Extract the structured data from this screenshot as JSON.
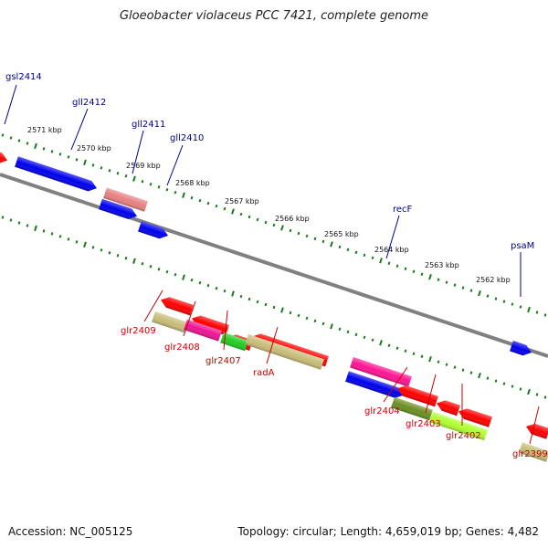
{
  "title": "Gloeobacter violaceus PCC 7421, complete genome",
  "footer": {
    "accession": "Accession: NC_005125",
    "topology": "Topology: circular; Length: 4,659,019 bp; Genes: 4,482"
  },
  "colors": {
    "forward_label": "#00008b",
    "reverse_label": "#cc0000",
    "tick": "#1a7a1a",
    "axis": "#808080"
  },
  "scale_labels": [
    "2571 kbp",
    "2570 kbp",
    "2569 kbp",
    "2568 kbp",
    "2567 kbp",
    "2566 kbp",
    "2565 kbp",
    "2564 kbp",
    "2563 kbp",
    "2562 kbp"
  ],
  "forward_labels": [
    "gsl2414",
    "gll2412",
    "gll2411",
    "gll2410",
    "recF",
    "psaM"
  ],
  "reverse_labels": [
    "glr2409",
    "glr2408",
    "glr2407",
    "radA",
    "glr2404",
    "glr2403",
    "glr2402",
    "glr2399"
  ],
  "gene_colors": [
    "#0000ee",
    "#0000ee",
    "#0000ee",
    "#e88080",
    "#ff0000",
    "#ff0000",
    "#ff0000",
    "#ff0000",
    "#ff1493",
    "#0000ee",
    "#0000ee",
    "#c8bc78",
    "#ee1493",
    "#22cc22",
    "#c8bc78",
    "#ff0000",
    "#ff0000",
    "#ff0000",
    "#6b8e23",
    "#adff2f",
    "#c8bc78",
    "#ff0000",
    "#ff0000"
  ]
}
